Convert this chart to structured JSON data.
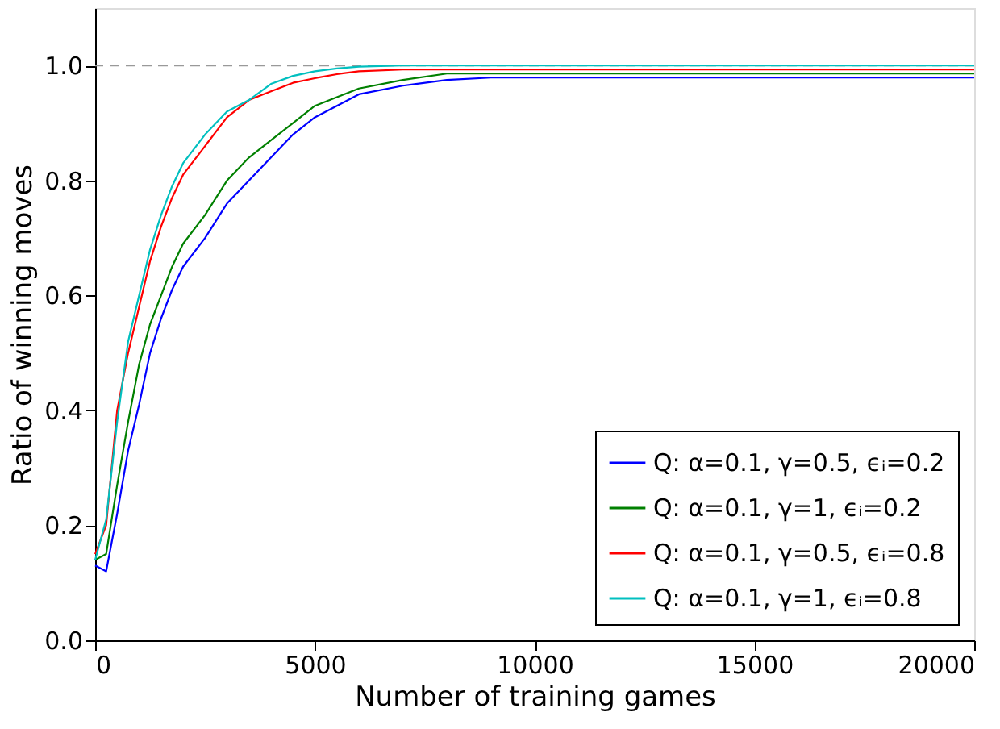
{
  "chart_data": {
    "type": "line",
    "xlabel": "Number of training games",
    "ylabel": "Ratio of winning moves",
    "x": [
      0,
      250,
      500,
      750,
      1000,
      1250,
      1500,
      1750,
      2000,
      2500,
      3000,
      3500,
      4000,
      4500,
      5000,
      5500,
      6000,
      7000,
      8000,
      9000,
      10000,
      12000,
      14000,
      16000,
      18000,
      20000
    ],
    "series": [
      {
        "name": "Q: α=0.1, γ=0.5, ϵᵢ=0.2",
        "color": "#0000ff",
        "values": [
          0.13,
          0.12,
          0.22,
          0.33,
          0.41,
          0.5,
          0.56,
          0.61,
          0.65,
          0.7,
          0.76,
          0.8,
          0.84,
          0.88,
          0.91,
          0.93,
          0.95,
          0.965,
          0.975,
          0.979,
          0.979,
          0.979,
          0.979,
          0.979,
          0.979,
          0.979
        ]
      },
      {
        "name": "Q: α=0.1, γ=1, ϵᵢ=0.2",
        "color": "#008000",
        "values": [
          0.14,
          0.15,
          0.27,
          0.38,
          0.48,
          0.55,
          0.6,
          0.65,
          0.69,
          0.74,
          0.8,
          0.84,
          0.87,
          0.9,
          0.93,
          0.945,
          0.96,
          0.975,
          0.986,
          0.986,
          0.986,
          0.986,
          0.986,
          0.986,
          0.986,
          0.986
        ]
      },
      {
        "name": "Q: α=0.1, γ=0.5, ϵᵢ=0.8",
        "color": "#ff0000",
        "values": [
          0.15,
          0.2,
          0.4,
          0.5,
          0.58,
          0.66,
          0.72,
          0.77,
          0.81,
          0.86,
          0.91,
          0.94,
          0.955,
          0.97,
          0.978,
          0.985,
          0.99,
          0.993,
          0.993,
          0.993,
          0.993,
          0.993,
          0.993,
          0.993,
          0.993,
          0.993
        ]
      },
      {
        "name": "Q: α=0.1, γ=1, ϵᵢ=0.8",
        "color": "#00bfbf",
        "values": [
          0.14,
          0.21,
          0.38,
          0.52,
          0.6,
          0.68,
          0.74,
          0.79,
          0.83,
          0.88,
          0.92,
          0.94,
          0.968,
          0.982,
          0.99,
          0.995,
          0.998,
          1.0,
          1.0,
          1.0,
          1.0,
          1.0,
          1.0,
          1.0,
          1.0,
          1.0
        ]
      }
    ],
    "xlim": [
      0,
      20000
    ],
    "xticks": [
      0,
      5000,
      10000,
      15000,
      20000
    ],
    "ylim": [
      0,
      1.1
    ],
    "yticks": [
      {
        "value": 0,
        "label": "0.0"
      },
      {
        "value": 0.2,
        "label": "0.2"
      },
      {
        "value": 0.4,
        "label": "0.4"
      },
      {
        "value": 0.6,
        "label": "0.6"
      },
      {
        "value": 0.8,
        "label": "0.8"
      },
      {
        "value": 1,
        "label": "1.0"
      }
    ],
    "ref_lines": [
      {
        "axis": "y",
        "value": 1.0,
        "color": "#999999",
        "line_style": "dashed"
      }
    ],
    "legend": "bottom right",
    "grid": false,
    "line_style": "solid"
  }
}
